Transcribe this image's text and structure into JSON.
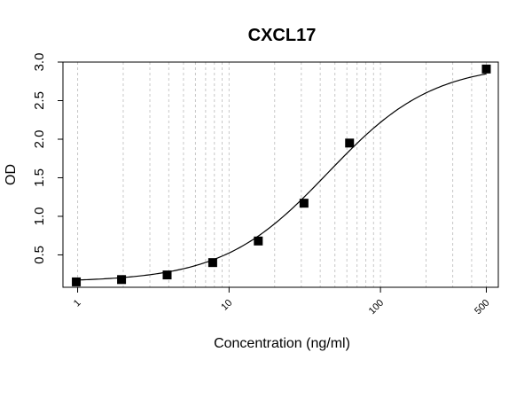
{
  "chart_data": {
    "type": "scatter",
    "title": "CXCL17",
    "xlabel": "Concentration (ng/ml)",
    "ylabel": "OD",
    "x_scale": "log",
    "xlim": [
      0.8,
      600
    ],
    "ylim": [
      0.08,
      3.0
    ],
    "x_ticks": [
      1,
      10,
      100,
      500
    ],
    "x_tick_labels": [
      "1",
      "10",
      "100",
      "500"
    ],
    "y_ticks": [
      0.5,
      1.0,
      1.5,
      2.0,
      2.5,
      3.0
    ],
    "y_tick_labels": [
      "0.5",
      "1.0",
      "1.5",
      "2.0",
      "2.5",
      "3.0"
    ],
    "grid": "vertical dotted at log decades",
    "series": [
      {
        "marker": "square",
        "x": [
          0.98,
          1.95,
          3.9,
          7.8,
          15.6,
          31.25,
          62.5,
          500
        ],
        "y": [
          0.15,
          0.18,
          0.24,
          0.4,
          0.68,
          1.17,
          1.95,
          2.91
        ]
      }
    ],
    "fit": {
      "type": "4PL",
      "bottom": 0.15,
      "top": 2.98,
      "ec50": 45,
      "hill": 1.25
    }
  }
}
